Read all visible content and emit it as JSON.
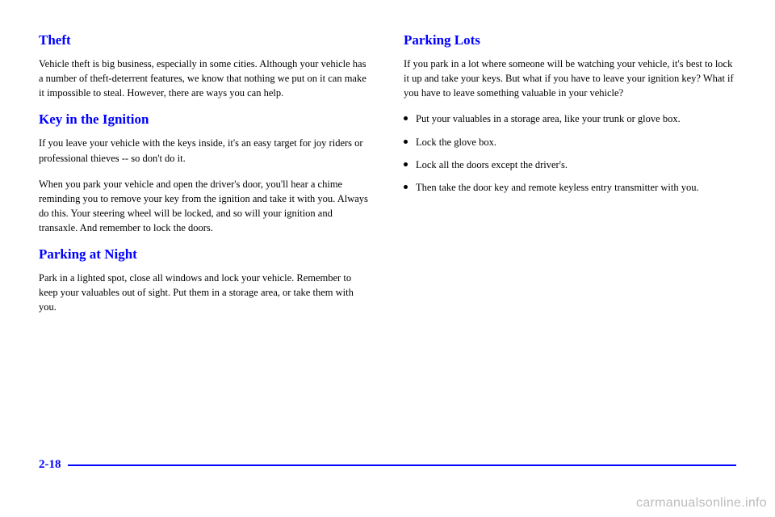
{
  "left": {
    "sections": [
      {
        "heading": "Theft",
        "paragraphs": [
          "Vehicle theft is big business, especially in some cities. Although your vehicle has a number of theft-deterrent features, we know that nothing we put on it can make it impossible to steal. However, there are ways you can help."
        ]
      },
      {
        "heading": "Key in the Ignition",
        "paragraphs": [
          "If you leave your vehicle with the keys inside, it's an easy target for joy riders or professional thieves -- so don't do it.",
          "When you park your vehicle and open the driver's door, you'll hear a chime reminding you to remove your key from the ignition and take it with you. Always do this. Your steering wheel will be locked, and so will your ignition and transaxle. And remember to lock the doors."
        ]
      },
      {
        "heading": "Parking at Night",
        "paragraphs": [
          "Park in a lighted spot, close all windows and lock your vehicle. Remember to keep your valuables out of sight. Put them in a storage area, or take them with you."
        ]
      }
    ]
  },
  "right": {
    "heading": "Parking Lots",
    "intro": "If you park in a lot where someone will be watching your vehicle, it's best to lock it up and take your keys. But what if you have to leave your ignition key? What if you have to leave something valuable in your vehicle?",
    "bullets": [
      "Put your valuables in a storage area, like your trunk or glove box.",
      "Lock the glove box.",
      "Lock all the doors except the driver's.",
      "Then take the door key and remote keyless entry transmitter with you."
    ]
  },
  "pageNumber": "2-18",
  "watermark": "carmanualsonline.info",
  "colors": {
    "accent": "#0000ff",
    "text": "#000000",
    "watermark": "#bcbcbc",
    "background": "#ffffff"
  }
}
